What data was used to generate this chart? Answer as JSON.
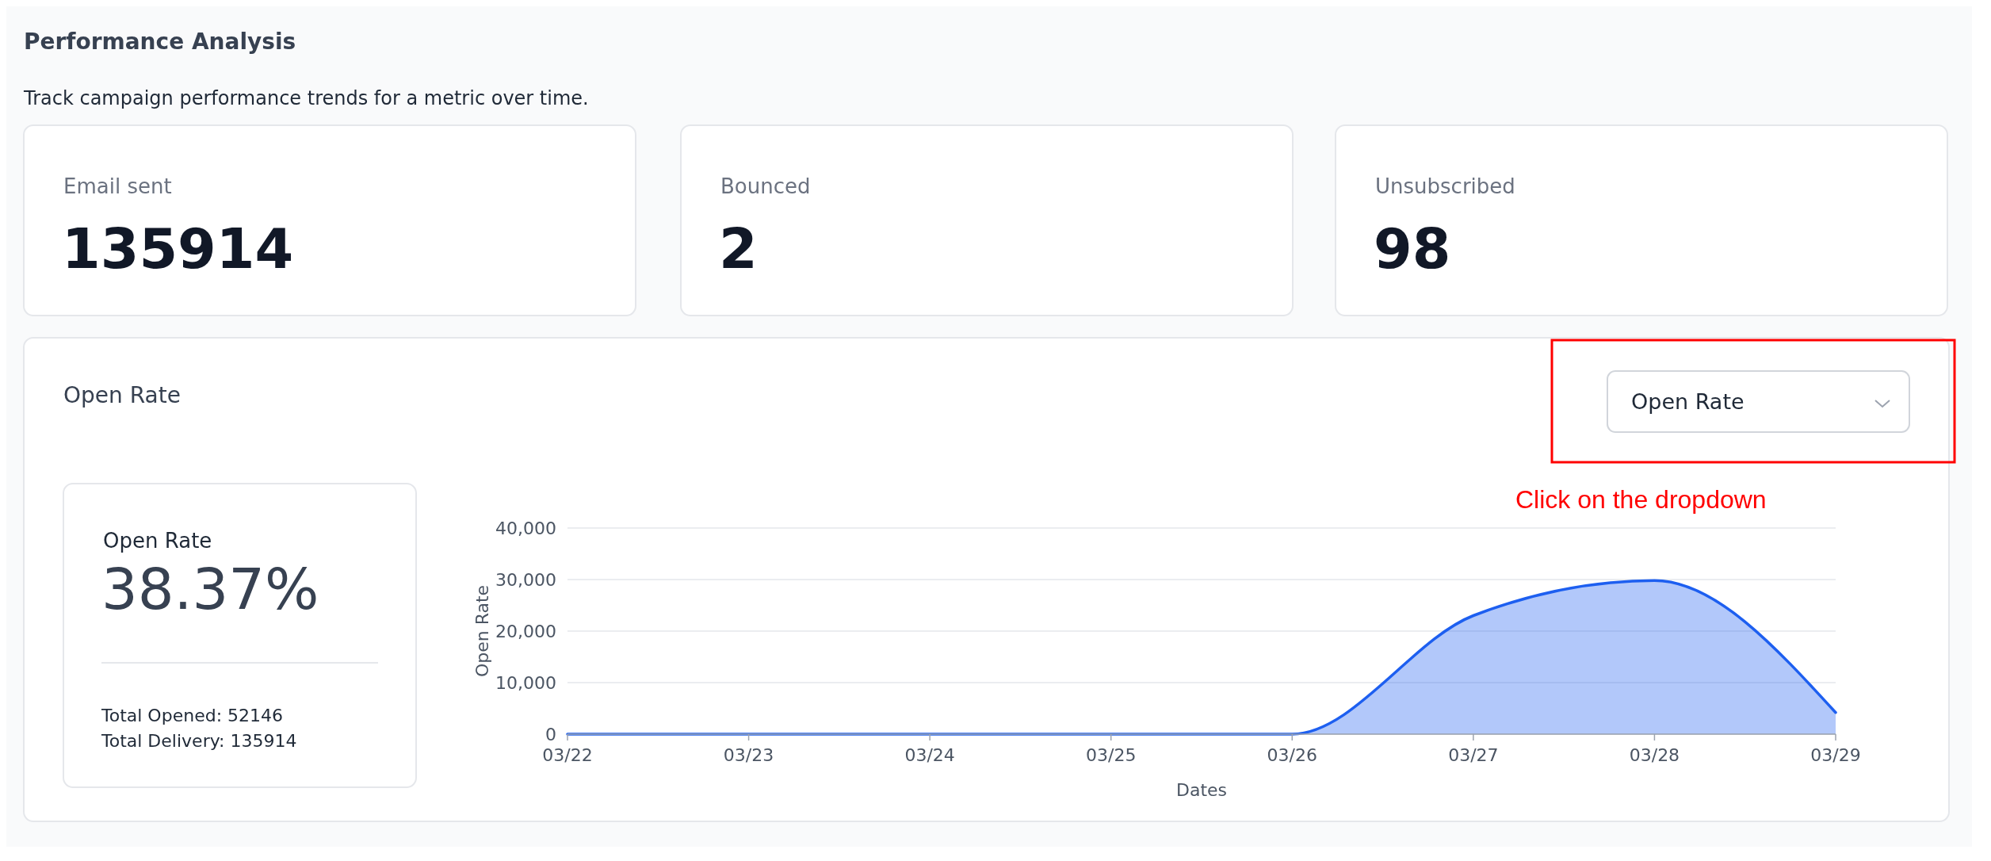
{
  "chart_data": [
    {
      "type": "other",
      "title": "Performance Analysis",
      "subtitle": "Track campaign performance trends for a metric over time."
    },
    {
      "type": "other",
      "title": "Email sent",
      "annotations": [
        "135914"
      ]
    },
    {
      "type": "other",
      "title": "Bounced",
      "annotations": [
        "2"
      ]
    },
    {
      "type": "other",
      "title": "Unsubscribed",
      "annotations": [
        "98"
      ]
    },
    {
      "type": "other",
      "title": "Open Rate",
      "annotations": [
        "Open Rate",
        "Click on the dropdown"
      ]
    },
    {
      "type": "other",
      "title": "Open Rate",
      "annotations": [
        "38.37%",
        "Total Opened: 52146",
        "Total Delivery: 135914"
      ]
    },
    {
      "type": "area",
      "xlabel": "Dates",
      "ylabel": "Open Rate",
      "categories": [
        "03/22",
        "03/23",
        "03/24",
        "03/25",
        "03/26",
        "03/27",
        "03/28",
        "03/29"
      ],
      "series": [
        {
          "color": "#1d5ff0",
          "values": [
            0,
            0,
            0,
            0,
            0,
            23000,
            29800,
            4200
          ]
        }
      ],
      "ylim": [
        0,
        40000
      ],
      "yticks": [
        {
          "value": 0,
          "label": "0"
        },
        {
          "value": 10000,
          "label": "10,000"
        },
        {
          "value": 20000,
          "label": "20,000"
        },
        {
          "value": 30000,
          "label": "30,000"
        },
        {
          "value": 40000,
          "label": "40,000"
        }
      ],
      "grid": "y"
    }
  ]
}
